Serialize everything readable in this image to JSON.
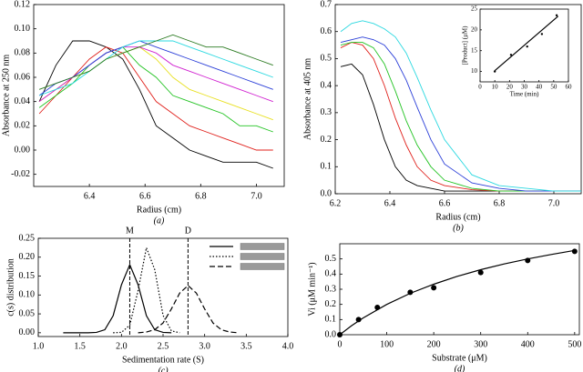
{
  "chart_data": [
    {
      "type": "line",
      "caption": "(a)",
      "x_label": "Radius (cm)",
      "y_label": "Absorbance at 250 nm",
      "xlim": [
        6.2,
        7.1
      ],
      "xticks": [
        6.4,
        6.6,
        6.8,
        {
          "value": 7.0,
          "label": "7.0"
        }
      ],
      "ylim": [
        -0.03,
        0.12
      ],
      "yticks": [
        -0.02,
        {
          "value": 0,
          "label": "0.00"
        },
        0.02,
        0.04,
        0.06,
        0.08,
        {
          "value": 0.1,
          "label": "0.10"
        },
        0.12
      ],
      "x": [
        6.22,
        6.28,
        6.34,
        6.4,
        6.46,
        6.52,
        6.58,
        6.64,
        6.7,
        6.76,
        6.82,
        6.88,
        6.94,
        7.0,
        7.06
      ],
      "series": [
        {
          "color": "#000000",
          "values": [
            0.04,
            0.07,
            0.09,
            0.09,
            0.085,
            0.075,
            0.05,
            0.02,
            0.01,
            0.0,
            -0.005,
            -0.01,
            -0.01,
            -0.01,
            -0.015
          ]
        },
        {
          "color": "#e0201b",
          "values": [
            0.03,
            0.045,
            0.06,
            0.075,
            0.085,
            0.08,
            0.06,
            0.04,
            0.03,
            0.02,
            0.015,
            0.01,
            0.005,
            0.0,
            0.0
          ]
        },
        {
          "color": "#22c322",
          "values": [
            0.035,
            0.045,
            0.055,
            0.07,
            0.08,
            0.085,
            0.07,
            0.06,
            0.045,
            0.04,
            0.035,
            0.03,
            0.02,
            0.02,
            0.015
          ]
        },
        {
          "color": "#e8e020",
          "values": [
            0.04,
            0.05,
            0.06,
            0.065,
            0.075,
            0.08,
            0.085,
            0.075,
            0.06,
            0.05,
            0.045,
            0.04,
            0.035,
            0.03,
            0.025
          ]
        },
        {
          "color": "#d020d0",
          "values": [
            0.04,
            0.05,
            0.06,
            0.07,
            0.08,
            0.085,
            0.085,
            0.08,
            0.07,
            0.065,
            0.06,
            0.055,
            0.05,
            0.045,
            0.04
          ]
        },
        {
          "color": "#2b3fd8",
          "values": [
            0.045,
            0.055,
            0.06,
            0.07,
            0.08,
            0.085,
            0.09,
            0.085,
            0.08,
            0.075,
            0.07,
            0.065,
            0.06,
            0.055,
            0.05
          ]
        },
        {
          "color": "#2ad8e0",
          "values": [
            0.045,
            0.05,
            0.055,
            0.065,
            0.075,
            0.085,
            0.09,
            0.09,
            0.09,
            0.085,
            0.08,
            0.075,
            0.07,
            0.065,
            0.06
          ]
        },
        {
          "color": "#2a7a20",
          "values": [
            0.05,
            0.055,
            0.06,
            0.065,
            0.075,
            0.08,
            0.085,
            0.09,
            0.095,
            0.09,
            0.085,
            0.085,
            0.08,
            0.075,
            0.07
          ]
        }
      ]
    },
    {
      "type": "line",
      "caption": "(b)",
      "x_label": "Radius (cm)",
      "y_label": "Absorbance at 405 nm",
      "xlim": [
        6.2,
        7.1
      ],
      "xticks": [
        6.2,
        6.4,
        6.6,
        6.8,
        {
          "value": 7.0,
          "label": "7.0"
        }
      ],
      "ylim": [
        0,
        0.7
      ],
      "yticks": [
        {
          "value": 0,
          "label": "0.0"
        },
        0.1,
        0.2,
        0.3,
        0.4,
        0.5,
        0.6,
        0.7
      ],
      "x": [
        6.22,
        6.26,
        6.3,
        6.34,
        6.38,
        6.42,
        6.46,
        6.5,
        6.55,
        6.6,
        6.7,
        6.8,
        6.9,
        7.0,
        7.1
      ],
      "series": [
        {
          "color": "#000000",
          "values": [
            0.47,
            0.48,
            0.44,
            0.33,
            0.2,
            0.1,
            0.05,
            0.03,
            0.02,
            0.01,
            0.01,
            0.01,
            0.01,
            0.01,
            0.01
          ]
        },
        {
          "color": "#e0201b",
          "values": [
            0.54,
            0.56,
            0.55,
            0.5,
            0.4,
            0.28,
            0.18,
            0.1,
            0.05,
            0.03,
            0.015,
            0.01,
            0.01,
            0.01,
            0.01
          ]
        },
        {
          "color": "#22c322",
          "values": [
            0.55,
            0.56,
            0.56,
            0.54,
            0.48,
            0.38,
            0.27,
            0.18,
            0.1,
            0.05,
            0.02,
            0.01,
            0.01,
            0.01,
            0.01
          ]
        },
        {
          "color": "#2b3fd8",
          "values": [
            0.56,
            0.57,
            0.58,
            0.57,
            0.55,
            0.5,
            0.42,
            0.32,
            0.2,
            0.11,
            0.04,
            0.02,
            0.01,
            0.01,
            0.01
          ]
        },
        {
          "color": "#2ad8e0",
          "values": [
            0.6,
            0.63,
            0.64,
            0.63,
            0.61,
            0.58,
            0.52,
            0.43,
            0.31,
            0.2,
            0.07,
            0.03,
            0.02,
            0.01,
            0.01
          ]
        }
      ]
    },
    {
      "type": "line",
      "caption": "(c)",
      "x_label": "Sedimentation rate (S)",
      "y_label": "c(s) distribution",
      "xlim": [
        1.0,
        4.0
      ],
      "xticks": [
        {
          "value": 1,
          "label": "1.0"
        },
        1.5,
        {
          "value": 2,
          "label": "2.0"
        },
        2.5,
        {
          "value": 3,
          "label": "3.0"
        },
        3.5,
        {
          "value": 4,
          "label": "4.0"
        }
      ],
      "ylim": [
        -0.01,
        0.25
      ],
      "yticks": [
        {
          "value": 0,
          "label": "0.00"
        },
        0.05,
        {
          "value": 0.1,
          "label": "0.10"
        },
        0.15,
        {
          "value": 0.2,
          "label": "0.20"
        },
        0.25
      ],
      "annotations": [
        {
          "text": "M",
          "x": 2.1
        },
        {
          "text": "D",
          "x": 2.8
        }
      ],
      "x": [
        1.3,
        1.4,
        1.5,
        1.6,
        1.7,
        1.8,
        1.9,
        2.0,
        2.1,
        2.2,
        2.3,
        2.4,
        2.5,
        2.6,
        2.7,
        2.8,
        2.9,
        3.0,
        3.1,
        3.2,
        3.3,
        3.4
      ],
      "series": [
        {
          "color": "#000000",
          "dash": "solid",
          "values": [
            0,
            0,
            0,
            0,
            0.001,
            0.008,
            0.045,
            0.127,
            0.18,
            0.127,
            0.045,
            0.008,
            0.001,
            0,
            null,
            null,
            null,
            null,
            null,
            null,
            null,
            null
          ]
        },
        {
          "color": "#000000",
          "dash": "dotted",
          "values": [
            null,
            null,
            null,
            null,
            null,
            null,
            0,
            0.001,
            0.02,
            0.112,
            0.225,
            0.167,
            0.046,
            0.005,
            0,
            null,
            null,
            null,
            null,
            null,
            null,
            null
          ]
        },
        {
          "color": "#000000",
          "dash": "dashed",
          "values": [
            null,
            null,
            null,
            null,
            null,
            null,
            null,
            null,
            null,
            0,
            0.002,
            0.008,
            0.026,
            0.063,
            0.105,
            0.125,
            0.105,
            0.063,
            0.026,
            0.008,
            0.002,
            0
          ]
        }
      ]
    },
    {
      "type": "scatter",
      "caption": "(d)",
      "x_label": "Substrate (μM)",
      "y_label": "Vi (μM min⁻¹)",
      "xlim": [
        0,
        510
      ],
      "xticks": [
        0,
        100,
        200,
        300,
        400,
        500
      ],
      "ylim": [
        0,
        0.6
      ],
      "yticks": [
        {
          "value": 0,
          "label": "0.0"
        },
        0.1,
        0.2,
        0.3,
        0.4,
        0.5
      ],
      "series": [
        {
          "color": "#000000",
          "mode": "markers",
          "x": [
            0,
            40,
            80,
            150,
            200,
            300,
            400,
            500
          ],
          "values": [
            0,
            0.1,
            0.18,
            0.28,
            0.31,
            0.41,
            0.49,
            0.55
          ]
        },
        {
          "color": "#000000",
          "mode": "line",
          "x": [
            0,
            25,
            50,
            100,
            150,
            200,
            250,
            300,
            350,
            400,
            450,
            500
          ],
          "values": [
            0,
            0.059,
            0.111,
            0.2,
            0.273,
            0.333,
            0.385,
            0.429,
            0.467,
            0.5,
            0.529,
            0.556
          ]
        }
      ]
    },
    {
      "type": "scatter",
      "x_label": "Time (min)",
      "y_label": "[Product] (μM)",
      "xlim": [
        0,
        60
      ],
      "xticks": [
        0,
        10,
        20,
        30,
        40,
        50,
        60
      ],
      "ylim": [
        7.5,
        25
      ],
      "yticks": [
        10,
        15,
        20,
        25
      ],
      "series": [
        {
          "color": "#000000",
          "mode": "markers",
          "x": [
            10,
            21,
            32,
            42,
            52
          ],
          "values": [
            10,
            14,
            16,
            19,
            23.5
          ]
        },
        {
          "color": "#000000",
          "mode": "line",
          "x": [
            10,
            53
          ],
          "values": [
            10.2,
            23.3
          ]
        }
      ]
    }
  ]
}
